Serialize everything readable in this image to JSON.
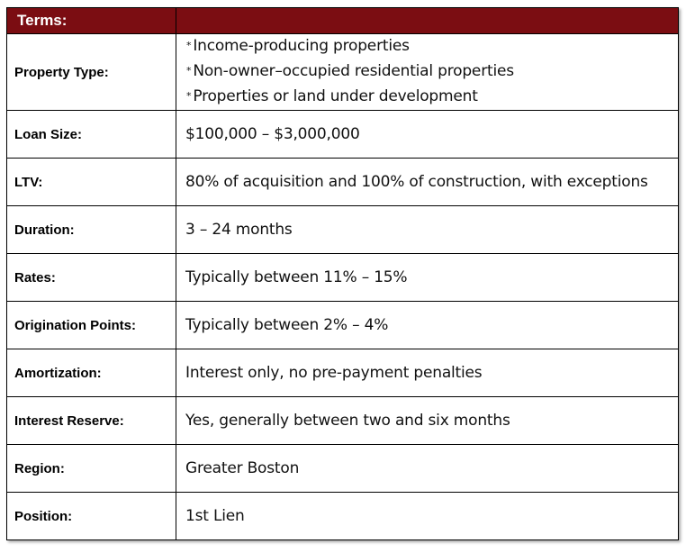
{
  "header": {
    "title": "Terms:",
    "colors": {
      "header_bg": "#7b0d12",
      "header_text": "#ffffff"
    }
  },
  "property_type": {
    "label": "Property Type:",
    "items": [
      "Income-producing properties",
      "Non-owner–occupied residential properties",
      "Properties or land under development"
    ],
    "bullet": "*"
  },
  "rows": [
    {
      "label": "Loan Size:",
      "value": "$100,000 – $3,000,000"
    },
    {
      "label": "LTV:",
      "value": "80% of acquisition and 100% of construction, with exceptions"
    },
    {
      "label": "Duration:",
      "value": "3 – 24 months"
    },
    {
      "label": "Rates:",
      "value": "Typically between 11% – 15%"
    },
    {
      "label": "Origination Points:",
      "value": "Typically between 2% – 4%"
    },
    {
      "label": "Amortization:",
      "value": "Interest only, no pre-payment penalties"
    },
    {
      "label": "Interest Reserve:",
      "value": "Yes, generally between two and six months"
    },
    {
      "label": "Region:",
      "value": "Greater Boston"
    },
    {
      "label": "Position:",
      "value": "1st Lien"
    }
  ]
}
